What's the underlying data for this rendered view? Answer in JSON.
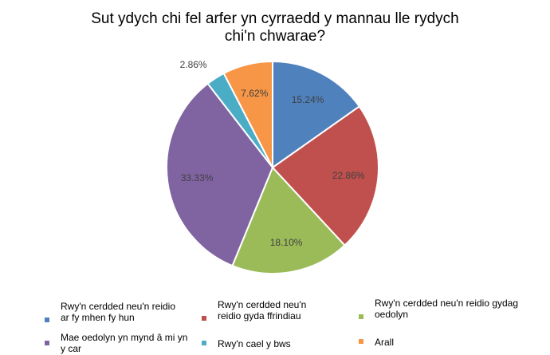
{
  "chart_data": {
    "type": "pie",
    "title": "Sut ydych chi fel arfer yn cyrraedd y mannau lle rydych chi'n chwarae?",
    "title_lines": [
      "Sut ydych chi fel arfer yn cyrraedd y mannau lle rydych",
      "chi'n chwarae?"
    ],
    "slices": [
      {
        "label": "Rwy'n cerdded neu'n reidio ar fy mhen fy hun",
        "value": 15.24,
        "value_label": "15.24%",
        "color": "#4F81BD"
      },
      {
        "label": "Rwy'n cerdded neu'n reidio gyda ffrindiau",
        "value": 22.86,
        "value_label": "22.86%",
        "color": "#C0504D"
      },
      {
        "label": "Rwy'n cerdded neu'n reidio gydag oedolyn",
        "value": 18.1,
        "value_label": "18.10%",
        "color": "#9BBB59"
      },
      {
        "label": "Mae oedolyn yn mynd â mi yn y car",
        "value": 33.33,
        "value_label": "33.33%",
        "color": "#8064A2"
      },
      {
        "label": "Rwy'n cael y bws",
        "value": 2.86,
        "value_label": "2.86%",
        "color": "#4BACC6"
      },
      {
        "label": "Arall",
        "value": 7.62,
        "value_label": "7.62%",
        "color": "#F79646"
      }
    ],
    "legend_position": "bottom"
  }
}
